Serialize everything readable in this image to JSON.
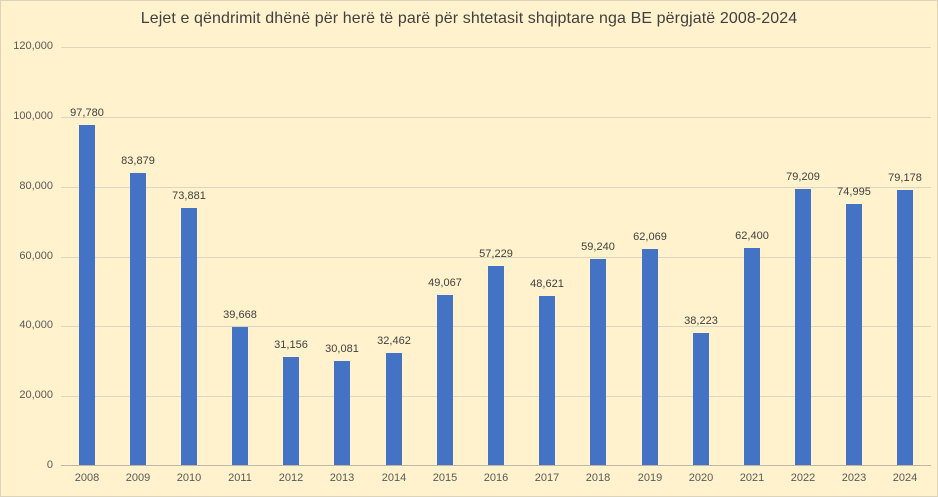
{
  "chart_data": {
    "type": "bar",
    "title": "Lejet e qëndrimit dhënë për herë të parë për shtetasit shqiptare nga BE përgjatë 2008-2024",
    "categories": [
      "2008",
      "2009",
      "2010",
      "2011",
      "2012",
      "2013",
      "2014",
      "2015",
      "2016",
      "2017",
      "2018",
      "2019",
      "2020",
      "2021",
      "2022",
      "2023",
      "2024"
    ],
    "values": [
      97780,
      83879,
      73881,
      39668,
      31156,
      30081,
      32462,
      49067,
      57229,
      48621,
      59240,
      62069,
      38223,
      62400,
      79209,
      74995,
      79178
    ],
    "value_labels": [
      "97,780",
      "83,879",
      "73,881",
      "39,668",
      "31,156",
      "30,081",
      "32,462",
      "49,067",
      "57,229",
      "48,621",
      "59,240",
      "62,069",
      "38,223",
      "62,400",
      "79,209",
      "74,995",
      "79,178"
    ],
    "xlabel": "",
    "ylabel": "",
    "ylim": [
      0,
      120000
    ],
    "yticks": [
      0,
      20000,
      40000,
      60000,
      80000,
      100000,
      120000
    ],
    "ytick_labels": [
      "0",
      "20,000",
      "40,000",
      "60,000",
      "80,000",
      "100,000",
      "120,000"
    ],
    "grid": true,
    "legend": "none",
    "bar_color": "#4472C4",
    "background_color": "#FFF2CC",
    "gridline_color": "#DDD6C1",
    "axis_line_color": "#BDB7A6",
    "title_color": "#404040",
    "label_color": "#404040",
    "tick_color": "#595959"
  }
}
